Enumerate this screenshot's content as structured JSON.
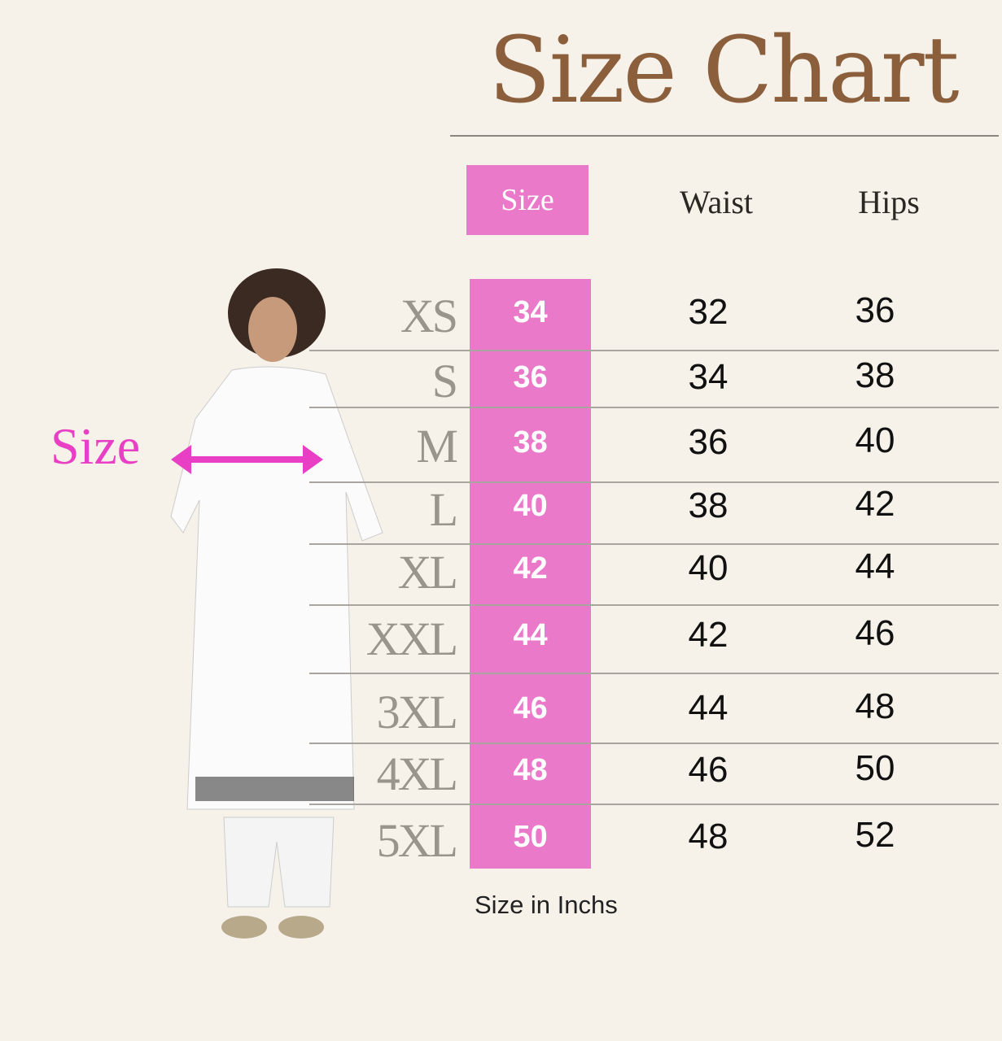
{
  "title": "Size Chart",
  "side_label": "Size",
  "headers": {
    "size": "Size",
    "waist": "Waist",
    "hips": "Hips"
  },
  "rows": [
    {
      "label": "XS",
      "size": "34",
      "waist": "32",
      "hips": "36"
    },
    {
      "label": "S",
      "size": "36",
      "waist": "34",
      "hips": "38"
    },
    {
      "label": "M",
      "size": "38",
      "waist": "36",
      "hips": "40"
    },
    {
      "label": "L",
      "size": "40",
      "waist": "38",
      "hips": "42"
    },
    {
      "label": "XL",
      "size": "42",
      "waist": "40",
      "hips": "44"
    },
    {
      "label": "XXL",
      "size": "44",
      "waist": "42",
      "hips": "46"
    },
    {
      "label": "3XL",
      "size": "46",
      "waist": "44",
      "hips": "48"
    },
    {
      "label": "4XL",
      "size": "48",
      "waist": "46",
      "hips": "50"
    },
    {
      "label": "5XL",
      "size": "50",
      "waist": "48",
      "hips": "52"
    }
  ],
  "footnote": "Size in Inchs",
  "colors": {
    "accent_pink": "#ea79c9",
    "title_brown": "#8b5e3c",
    "background": "#f6f2ea",
    "arrow_magenta": "#e83fc4"
  }
}
